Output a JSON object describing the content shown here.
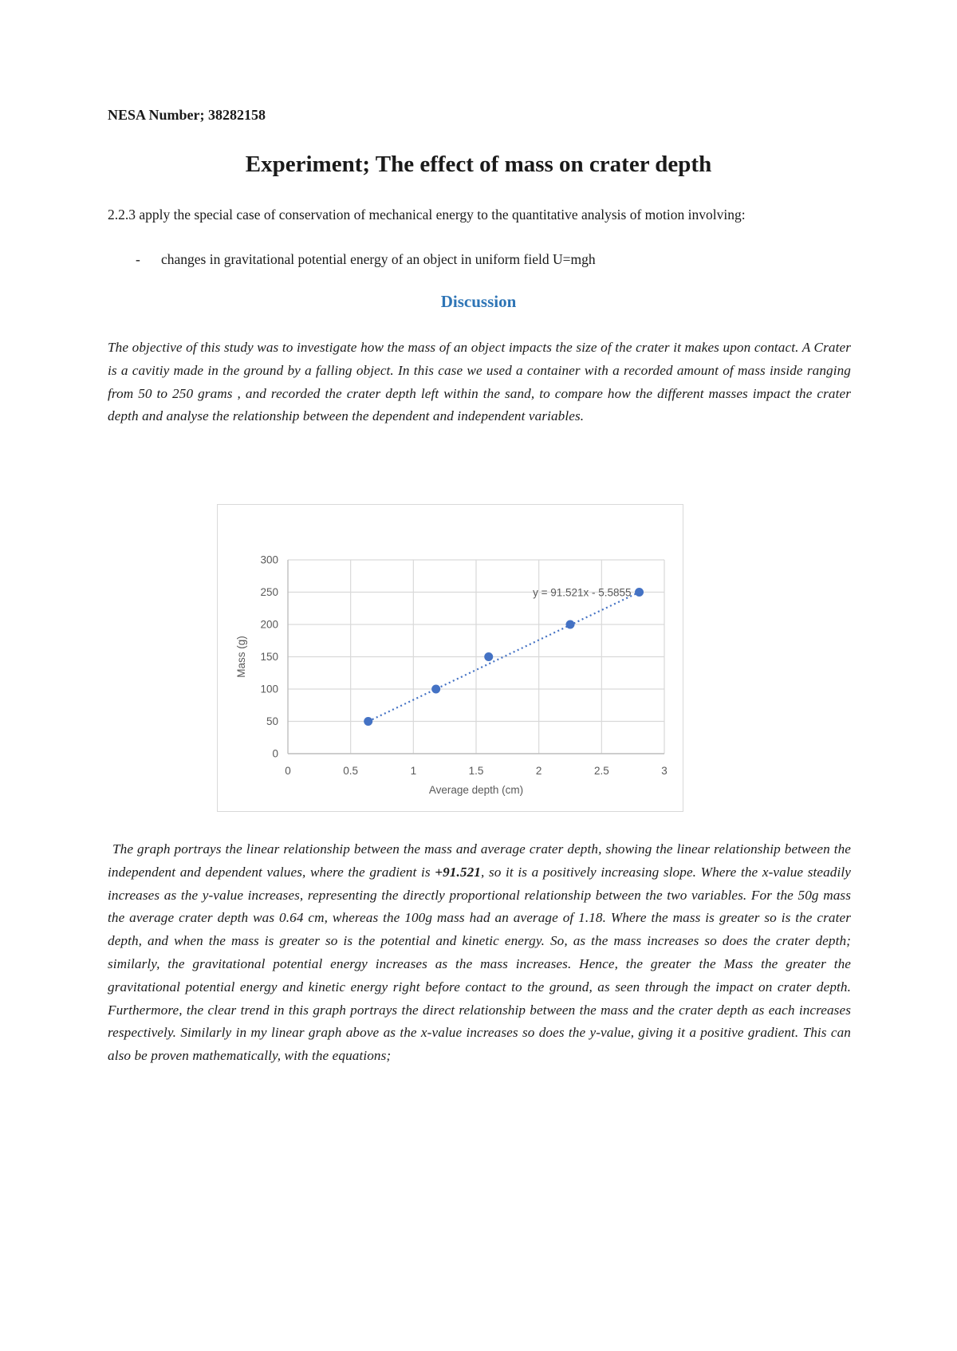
{
  "doc": {
    "nesa_label": "NESA Number; 38282158",
    "title": "Experiment; The effect of mass on crater depth",
    "syllabus_text": "2.2.3 apply the special case of conservation of mechanical energy to the quantitative analysis of motion involving:",
    "bullet_dash": "-",
    "bullet_text": "changes in gravitational potential energy of an object in uniform field U=mgh",
    "discussion_heading": "Discussion",
    "paragraph1": "The objective of this study was to investigate how the mass of an object impacts the size of the crater it makes upon contact. A Crater is a cavitiy made in the ground by a falling object. In this case we used a container with a recorded amount of mass inside ranging from 50 to 250 grams , and recorded the crater depth left within the sand, to compare how the different masses impact the crater depth and analyse the relationship between the dependent and independent variables.",
    "paragraph2_part1": "The graph portrays the linear relationship between the mass and average crater depth, showing the linear relationship between the independent and dependent values, where the gradient is ",
    "paragraph2_bold": "+91.521",
    "paragraph2_part2": ", so it is a positively increasing slope. Where the x-value steadily increases as the y-value increases, representing the directly proportional relationship between the two variables. For the 50g mass the average crater depth was 0.64 cm, whereas the 100g mass had an average of 1.18. Where the mass is greater so is the crater depth, and when the mass is greater so is the potential and kinetic energy. So, as the mass increases so does the crater depth; similarly, the gravitational potential energy increases as the mass increases. Hence, the greater the Mass the greater the gravitational potential energy and kinetic energy right before contact to the ground, as seen through the impact on crater depth. Furthermore, the clear trend in this graph portrays the direct relationship between the mass and the crater depth as each increases respectively. Similarly in my linear graph above as the  x-value increases so does the y-value, giving it a positive gradient. This can also be proven mathematically, with the equations;"
  },
  "colors": {
    "heading_blue": "#2E75B6",
    "point_blue": "#4472C4",
    "gridline_gray": "#D9D9D9",
    "axis_line_gray": "#BFBFBF",
    "axis_text_gray": "#595959"
  },
  "chart_data": {
    "type": "scatter",
    "title": "",
    "xlabel": "Average depth (cm)",
    "ylabel": "Mass (g)",
    "x": [
      0.64,
      1.18,
      1.6,
      2.25,
      2.8
    ],
    "y": [
      50,
      100,
      150,
      200,
      250
    ],
    "xlim": [
      0,
      3
    ],
    "ylim": [
      0,
      300
    ],
    "xticks": [
      0,
      0.5,
      1,
      1.5,
      2,
      2.5,
      3
    ],
    "yticks": [
      0,
      50,
      100,
      150,
      200,
      250,
      300
    ],
    "grid": true,
    "legend": "none",
    "trendline": {
      "style": "dotted",
      "slope": 91.521,
      "intercept": -5.5855,
      "equation_label": "y = 91.521x - 5.5855"
    }
  }
}
